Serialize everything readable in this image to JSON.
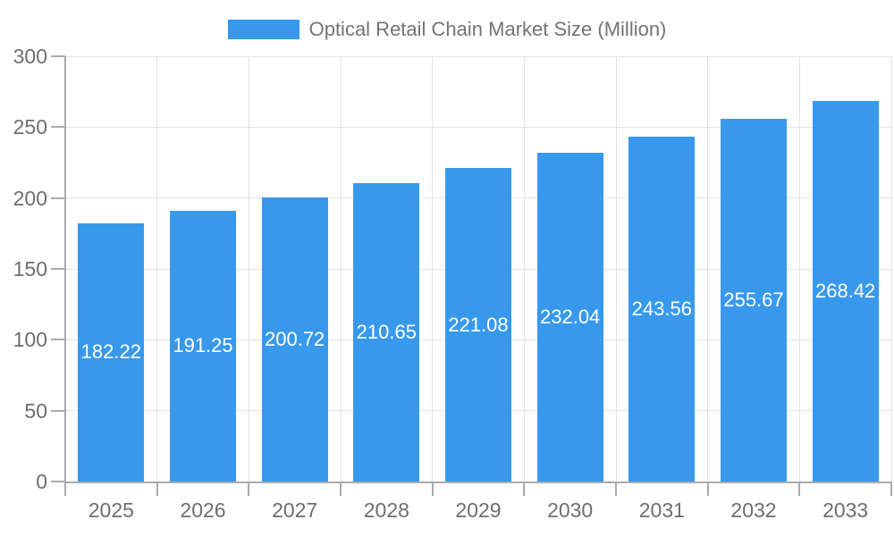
{
  "legend": {
    "label": "Optical Retail Chain Market Size (Million)"
  },
  "chart_data": {
    "type": "bar",
    "title": "Optical Retail Chain Market Size (Million)",
    "categories": [
      "2025",
      "2026",
      "2027",
      "2028",
      "2029",
      "2030",
      "2031",
      "2032",
      "2033"
    ],
    "values": [
      182.22,
      191.25,
      200.72,
      210.65,
      221.08,
      232.04,
      243.56,
      255.67,
      268.42
    ],
    "value_labels": [
      "182.22",
      "191.25",
      "200.72",
      "210.65",
      "221.08",
      "232.04",
      "243.56",
      "255.67",
      "268.42"
    ],
    "xlabel": "",
    "ylabel": "",
    "ylim": [
      0,
      300
    ],
    "y_ticks": [
      0,
      50,
      100,
      150,
      200,
      250,
      300
    ],
    "grid": true,
    "legend_position": "top-center",
    "colors": {
      "bar": "#3899EC",
      "value_label": "#FFFFFF",
      "gridline": "#E3E3E3",
      "axis_line": "#AAAAAA",
      "tick_label": "#6E6E6E",
      "legend_text": "#737373",
      "background": "#FFFFFF"
    }
  }
}
